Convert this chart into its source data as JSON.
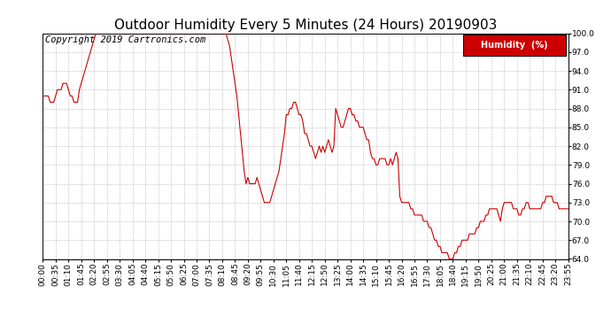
{
  "title": "Outdoor Humidity Every 5 Minutes (24 Hours) 20190903",
  "copyright_text": "Copyright 2019 Cartronics.com",
  "legend_label": "Humidity  (%)",
  "line_color": "#cc0000",
  "legend_bg": "#cc0000",
  "legend_text_color": "#ffffff",
  "bg_color": "#ffffff",
  "grid_color": "#bbbbbb",
  "ylim": [
    64.0,
    100.0
  ],
  "yticks": [
    64.0,
    67.0,
    70.0,
    73.0,
    76.0,
    79.0,
    82.0,
    85.0,
    88.0,
    91.0,
    94.0,
    97.0,
    100.0
  ],
  "xtick_step": 7,
  "humidity_values": [
    90,
    90,
    90,
    90,
    89,
    89,
    89,
    90,
    91,
    91,
    91,
    92,
    92,
    92,
    91,
    90,
    90,
    89,
    89,
    89,
    91,
    92,
    93,
    94,
    95,
    96,
    97,
    98,
    99,
    100,
    100,
    100,
    100,
    100,
    100,
    100,
    100,
    100,
    100,
    100,
    100,
    100,
    100,
    100,
    100,
    100,
    100,
    100,
    100,
    100,
    100,
    100,
    100,
    100,
    100,
    100,
    100,
    100,
    100,
    100,
    100,
    100,
    100,
    100,
    100,
    100,
    100,
    100,
    100,
    100,
    100,
    100,
    100,
    100,
    100,
    100,
    100,
    100,
    100,
    100,
    100,
    100,
    100,
    100,
    100,
    100,
    100,
    100,
    100,
    100,
    100,
    100,
    100,
    100,
    100,
    100,
    100,
    100,
    100,
    100,
    100,
    99,
    98,
    96,
    94,
    92,
    90,
    87,
    84,
    81,
    78,
    76,
    77,
    76,
    76,
    76,
    76,
    77,
    76,
    75,
    74,
    73,
    73,
    73,
    73,
    74,
    75,
    76,
    77,
    78,
    80,
    82,
    84,
    87,
    87,
    88,
    88,
    89,
    89,
    88,
    87,
    87,
    86,
    84,
    84,
    83,
    82,
    82,
    81,
    80,
    81,
    82,
    81,
    82,
    81,
    82,
    83,
    82,
    81,
    82,
    88,
    87,
    86,
    85,
    85,
    86,
    87,
    88,
    88,
    87,
    87,
    86,
    86,
    85,
    85,
    85,
    84,
    83,
    83,
    81,
    80,
    80,
    79,
    79,
    80,
    80,
    80,
    80,
    79,
    79,
    80,
    79,
    80,
    81,
    80,
    74,
    73,
    73,
    73,
    73,
    73,
    72,
    72,
    71,
    71,
    71,
    71,
    71,
    70,
    70,
    70,
    69,
    69,
    68,
    67,
    67,
    66,
    66,
    65,
    65,
    65,
    65,
    64,
    64,
    64,
    65,
    65,
    66,
    66,
    67,
    67,
    67,
    67,
    68,
    68,
    68,
    68,
    69,
    69,
    70,
    70,
    70,
    71,
    71,
    72,
    72,
    72,
    72,
    72,
    71,
    70,
    72,
    73,
    73,
    73,
    73,
    73,
    72,
    72,
    72,
    71,
    71,
    72,
    72,
    73,
    73,
    72,
    72,
    72,
    72,
    72,
    72,
    72,
    73,
    73,
    74,
    74,
    74,
    74,
    73,
    73,
    73,
    72,
    72,
    72,
    72,
    72,
    72
  ],
  "title_fontsize": 11,
  "tick_fontsize": 6.5,
  "copyright_fontsize": 7.5
}
